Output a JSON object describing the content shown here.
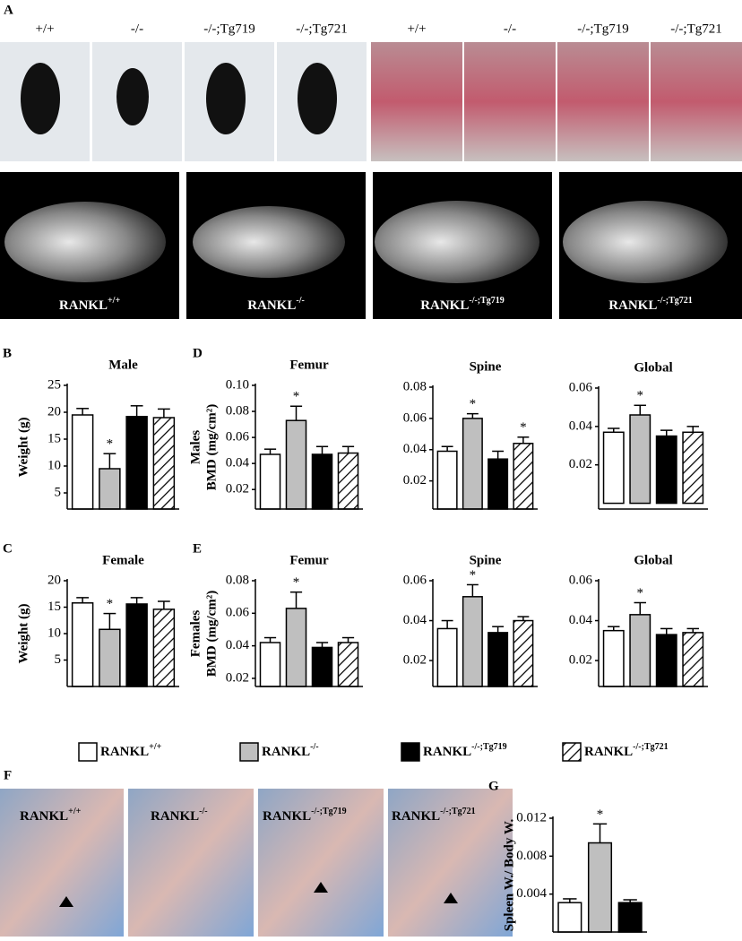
{
  "panel_a": {
    "letter": "A",
    "mouse_labels": [
      "+/+",
      "-/-",
      "-/-;Tg719",
      "-/-;Tg721"
    ],
    "teeth_labels": [
      "+/+",
      "-/-",
      "-/-;Tg719",
      "-/-;Tg721"
    ],
    "scan_labels": [
      {
        "base": "RANKL",
        "sup": "+/+"
      },
      {
        "base": "RANKL",
        "sup": "-/-"
      },
      {
        "base": "RANKL",
        "sup": "-/-;Tg719"
      },
      {
        "base": "RANKL",
        "sup": "-/-;Tg721"
      }
    ]
  },
  "legend": [
    {
      "base": "RANKL",
      "sup": "+/+",
      "fill": "#ffffff"
    },
    {
      "base": "RANKL",
      "sup": "-/-",
      "fill": "#bfbfbf"
    },
    {
      "base": "RANKL",
      "sup": "-/-;Tg719",
      "fill": "#000000"
    },
    {
      "base": "RANKL",
      "sup": "-/-;Tg721",
      "fill": "hatch"
    }
  ],
  "panel_f": {
    "letter": "F",
    "labels": [
      {
        "base": "RANKL",
        "sup": "+/+"
      },
      {
        "base": "RANKL",
        "sup": "-/-"
      },
      {
        "base": "RANKL",
        "sup": "-/-;Tg719"
      },
      {
        "base": "RANKL",
        "sup": "-/-;Tg721"
      }
    ]
  },
  "chart_data": [
    {
      "type": "bar",
      "panel": "B",
      "title": "Male",
      "ylabel": "Weight (g)",
      "ylim": [
        2,
        25
      ],
      "yticks": [
        5,
        10,
        15,
        20,
        25
      ],
      "values": [
        19.5,
        9.5,
        19.2,
        19
      ],
      "errors": [
        1.2,
        2.8,
        2,
        1.6
      ],
      "value_labels": [
        null,
        "*",
        null,
        null
      ]
    },
    {
      "type": "bar",
      "panel": "D",
      "title": "Femur",
      "row_label": "Males",
      "ylabel": "BMD (mg/cm²)",
      "ylim": [
        0.005,
        0.1
      ],
      "yticks": [
        0.02,
        0.04,
        0.06,
        0.08,
        {
          "value": 0.1,
          "label": "0.10"
        }
      ],
      "values": [
        0.047,
        0.073,
        0.047,
        0.048
      ],
      "errors": [
        0.004,
        0.011,
        0.006,
        0.005
      ],
      "value_labels": [
        null,
        "*",
        null,
        null
      ]
    },
    {
      "type": "bar",
      "title": "Spine",
      "ylim": [
        0.002,
        0.08
      ],
      "yticks": [
        0.02,
        0.04,
        0.06,
        0.08
      ],
      "values": [
        0.039,
        0.06,
        0.034,
        0.044
      ],
      "errors": [
        0.003,
        0.003,
        0.005,
        0.004
      ],
      "value_labels": [
        null,
        "*",
        null,
        "*"
      ]
    },
    {
      "type": "bar",
      "title": "Global",
      "ylim": [
        -0.003,
        0.06
      ],
      "yticks": [
        0.02,
        0.04,
        0.06
      ],
      "values": [
        0.037,
        0.046,
        0.035,
        0.037
      ],
      "errors": [
        0.002,
        0.005,
        0.003,
        0.003
      ],
      "value_labels": [
        null,
        "*",
        null,
        null
      ]
    },
    {
      "type": "bar",
      "panel": "C",
      "title": "Female",
      "ylabel": "Weight (g)",
      "ylim": [
        0,
        20
      ],
      "yticks": [
        5,
        10,
        15,
        20
      ],
      "values": [
        15.8,
        10.8,
        15.6,
        14.6
      ],
      "errors": [
        1,
        3,
        1.2,
        1.5
      ],
      "value_labels": [
        null,
        "*",
        null,
        null
      ]
    },
    {
      "type": "bar",
      "panel": "E",
      "title": "Femur",
      "row_label": "Females",
      "ylabel": "BMD (mg/cm²)",
      "ylim": [
        0.015,
        0.08
      ],
      "yticks": [
        0.02,
        0.04,
        0.06,
        0.08
      ],
      "values": [
        0.042,
        0.063,
        0.039,
        0.042
      ],
      "errors": [
        0.003,
        0.01,
        0.003,
        0.003
      ],
      "value_labels": [
        null,
        "*",
        null,
        null
      ]
    },
    {
      "type": "bar",
      "title": "Spine",
      "ylim": [
        0.007,
        0.06
      ],
      "yticks": [
        0.02,
        0.04,
        0.06
      ],
      "values": [
        0.036,
        0.052,
        0.034,
        0.04
      ],
      "errors": [
        0.004,
        0.006,
        0.003,
        0.002
      ],
      "value_labels": [
        null,
        "*",
        null,
        null
      ]
    },
    {
      "type": "bar",
      "title": "Global",
      "ylim": [
        0.007,
        0.06
      ],
      "yticks": [
        0.02,
        0.04,
        0.06
      ],
      "values": [
        0.035,
        0.043,
        0.033,
        0.034
      ],
      "errors": [
        0.002,
        0.006,
        0.003,
        0.002
      ],
      "value_labels": [
        null,
        "*",
        null,
        null
      ]
    },
    {
      "type": "bar",
      "panel": "G",
      "ylabel": "Spleen W./ Body W.",
      "ylim": [
        0,
        0.012
      ],
      "yticks": [
        0.004,
        0.008,
        0.012
      ],
      "values": [
        0.0031,
        0.0094,
        0.0031
      ],
      "errors": [
        0.0004,
        0.002,
        0.0003
      ],
      "value_labels": [
        null,
        "*",
        null
      ]
    }
  ]
}
